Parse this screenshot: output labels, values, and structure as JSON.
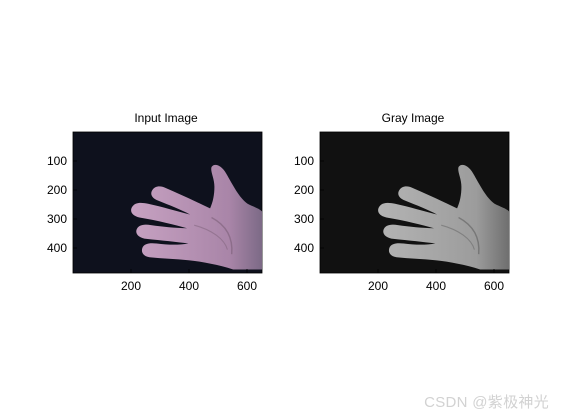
{
  "figure": {
    "panels": [
      {
        "title": "Input Image",
        "xticks": [
          "200",
          "400",
          "600"
        ],
        "yticks": [
          "100",
          "200",
          "300",
          "400"
        ],
        "background": "#0e111d",
        "hand_fill": "#b994b2",
        "hand_shadow": "#6d5a74"
      },
      {
        "title": "Gray Image",
        "xticks": [
          "200",
          "400",
          "600"
        ],
        "yticks": [
          "100",
          "200",
          "300",
          "400"
        ],
        "background": "#111111",
        "hand_fill": "#a3a3a3",
        "hand_shadow": "#5a5a5a"
      }
    ]
  },
  "watermark": "CSDN @紫极神光"
}
